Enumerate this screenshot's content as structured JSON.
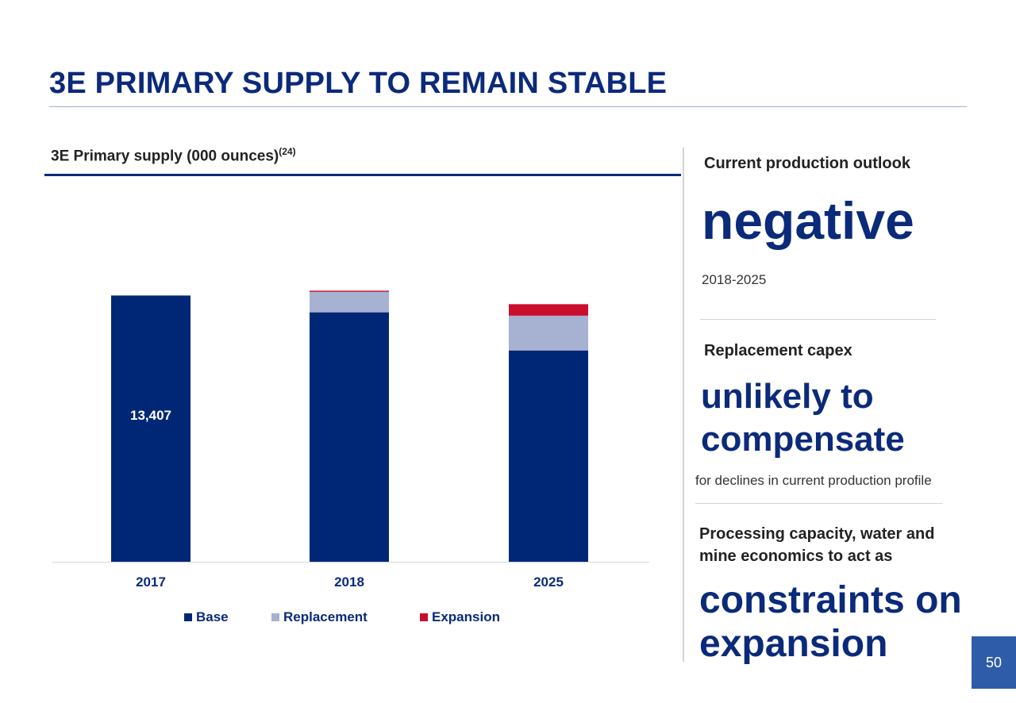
{
  "slide": {
    "title": "3E PRIMARY SUPPLY TO REMAIN STABLE",
    "chart_heading": "3E Primary supply (000 ounces)",
    "chart_heading_note": "(24)",
    "page_number": "50"
  },
  "chart_data": {
    "type": "bar",
    "stacked": true,
    "categories": [
      "2017",
      "2018",
      "2025"
    ],
    "series": [
      {
        "name": "Base",
        "color": "#002776",
        "values": [
          13407,
          12560,
          10640
        ]
      },
      {
        "name": "Replacement",
        "color": "#a7b1d2",
        "values": [
          0,
          1030,
          1750
        ]
      },
      {
        "name": "Expansion",
        "color": "#c8102e",
        "values": [
          0,
          60,
          580
        ]
      }
    ],
    "data_labels": [
      {
        "category": "2017",
        "series": "Base",
        "text": "13,407"
      }
    ],
    "ylim": [
      0,
      16500
    ],
    "grid": false,
    "legend_position": "bottom"
  },
  "panel": {
    "outlook": {
      "label": "Current production outlook",
      "value": "negative",
      "note": "2018-2025"
    },
    "capex": {
      "label": "Replacement capex",
      "value_line1": "unlikely to",
      "value_line2": "compensate",
      "note": "for declines in current production profile"
    },
    "constraints": {
      "label_line1": "Processing capacity, water and",
      "label_line2": "mine economics to act as",
      "value_line1": "constraints on",
      "value_line2": "expansion"
    }
  }
}
